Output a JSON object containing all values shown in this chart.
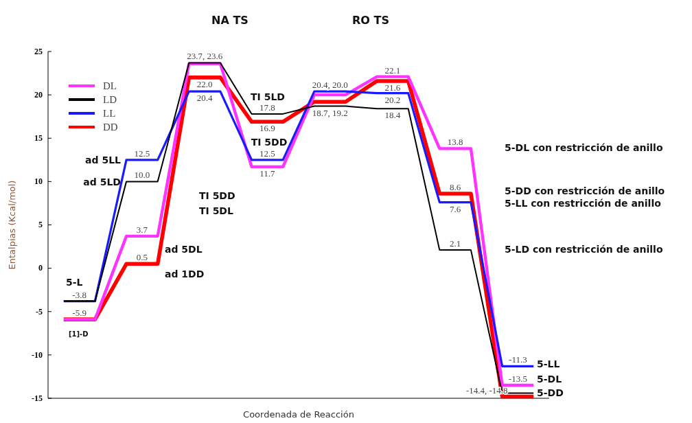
{
  "chart_data": {
    "type": "line",
    "xlabel": "Coordenada de Reacción",
    "ylabel": "Entalpias (Kcal/mol)",
    "categories": [
      null,
      null,
      null,
      null,
      null,
      null,
      null,
      null,
      null,
      null,
      null,
      null,
      null,
      null,
      null,
      null
    ],
    "ylim": [
      -15,
      25
    ],
    "yticks": [
      -15,
      -10,
      -5,
      0,
      5,
      10,
      15,
      20,
      25
    ],
    "grid": false,
    "legend": "top left",
    "series": [
      {
        "name": "DL",
        "color": "#ff33ff",
        "values": [
          -5.9,
          -5.9,
          3.7,
          3.7,
          23.6,
          23.6,
          11.7,
          11.7,
          20.0,
          20.0,
          22.1,
          22.1,
          13.8,
          13.8,
          -13.5,
          -13.5
        ],
        "value_labels": [
          null,
          null,
          "3.7",
          null,
          null,
          null,
          "11.7",
          null,
          null,
          null,
          "22.1",
          null,
          "13.8",
          null,
          "-13.5",
          null
        ]
      },
      {
        "name": "LD",
        "color": "#000000",
        "values": [
          -3.8,
          -3.8,
          10.0,
          10.0,
          23.7,
          23.7,
          17.8,
          17.8,
          18.7,
          18.7,
          18.4,
          18.4,
          2.1,
          2.1,
          -14.4,
          -14.4
        ],
        "value_labels": [
          "-3.8",
          null,
          "10.0",
          null,
          "23.7, 23.6",
          null,
          "17.8",
          null,
          "18.7, 19.2",
          null,
          "18.4",
          null,
          "2.1",
          null,
          "-14.4, -14.8",
          null
        ]
      },
      {
        "name": "LL",
        "color": "#1a1aff",
        "values": [
          -3.8,
          -3.8,
          12.5,
          12.5,
          20.4,
          20.4,
          12.5,
          12.5,
          20.4,
          20.4,
          20.2,
          20.2,
          7.6,
          7.6,
          -11.3,
          -11.3
        ],
        "value_labels": [
          null,
          null,
          "12.5",
          null,
          "20.4",
          null,
          "12.5",
          null,
          "20.4, 20.0",
          null,
          "20.2",
          null,
          "7.6",
          null,
          "-11.3",
          null
        ]
      },
      {
        "name": "DD",
        "color": "#ff0000",
        "values": [
          -5.9,
          -5.9,
          0.5,
          0.5,
          22.0,
          22.0,
          16.9,
          16.9,
          19.2,
          19.2,
          21.6,
          21.6,
          8.6,
          8.6,
          -14.8,
          -14.8
        ],
        "value_labels": [
          "-5.9",
          null,
          "0.5",
          null,
          "22.0",
          null,
          "16.9",
          null,
          null,
          null,
          "21.6",
          null,
          "8.6",
          null,
          null,
          null
        ]
      }
    ],
    "annotations": [
      "NA TS",
      "RO TS",
      "5-L",
      "[1]-D",
      "ad 5LL",
      "ad 5LD",
      "ad 5DL",
      "ad 1DD",
      "TI 5DD",
      "TI 5DL",
      "TI 5LD",
      "TI 5DD",
      "5-DL con restricción de anillo",
      "5-DD con restricción de anillo",
      "5-LL con restricción de anillo",
      "5-LD con restricción de anillo",
      "5-LL",
      "5-DL",
      "5-DD"
    ]
  }
}
